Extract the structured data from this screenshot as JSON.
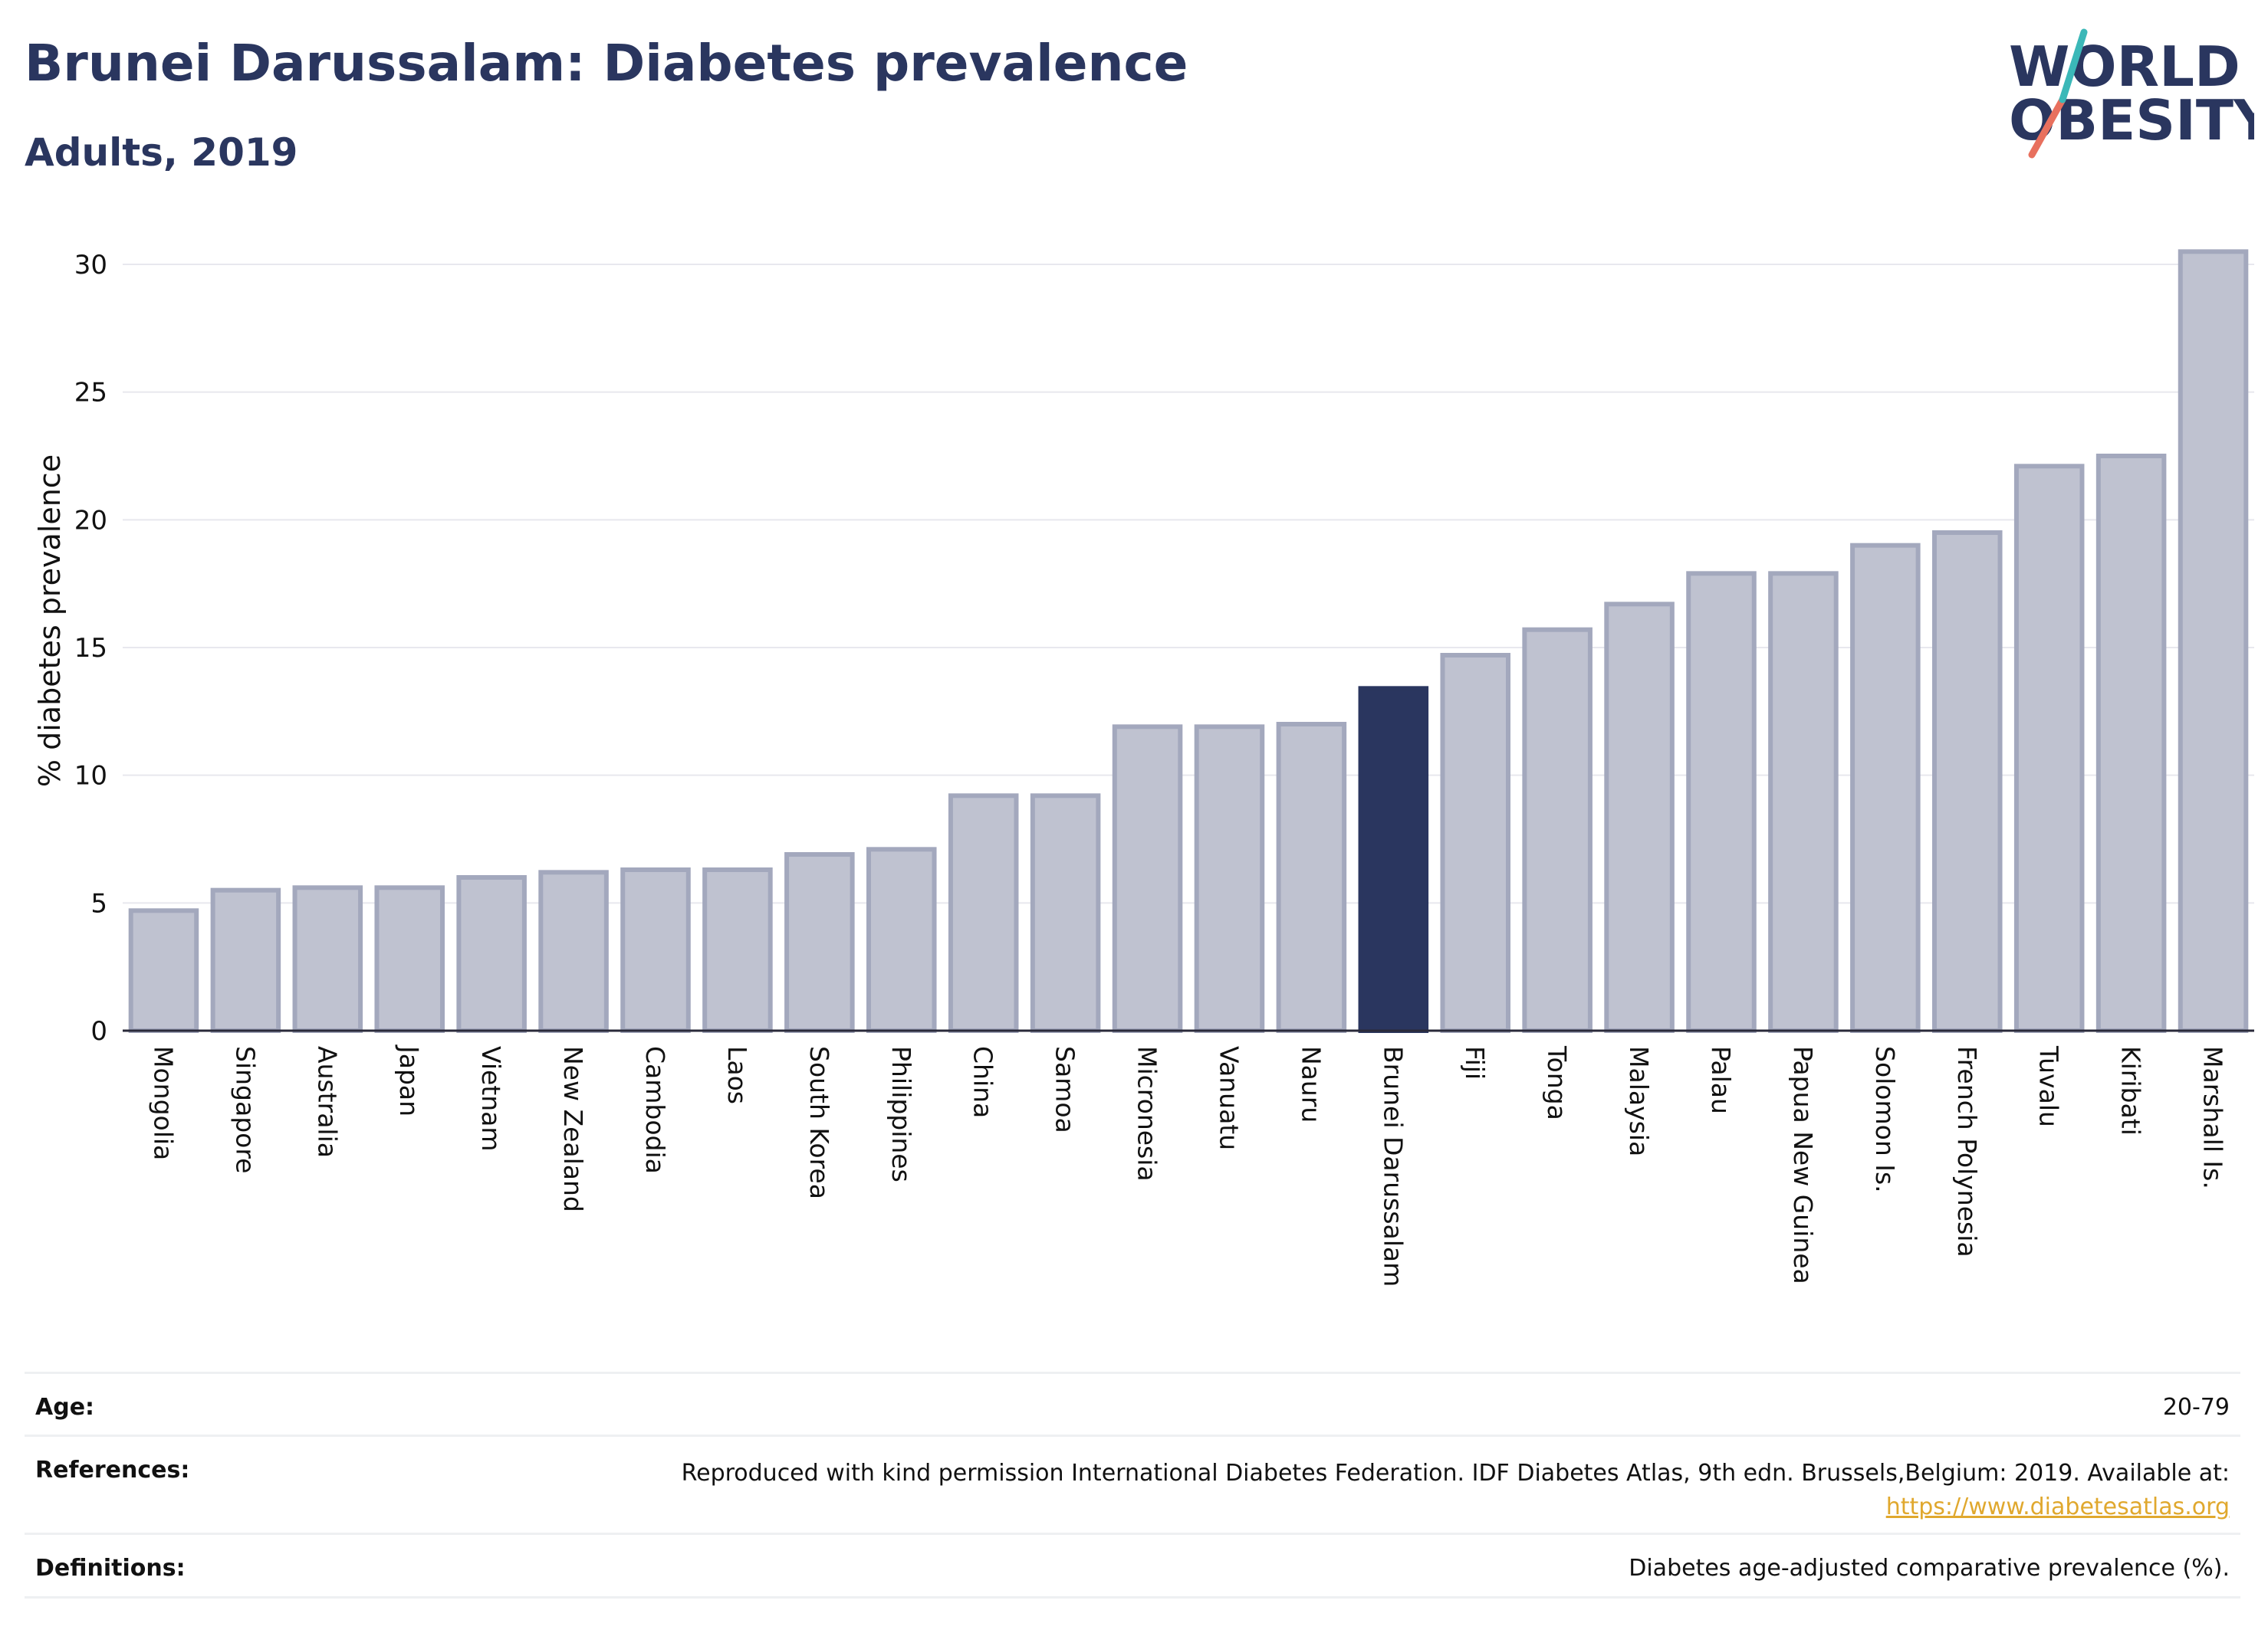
{
  "header": {
    "title": "Brunei Darussalam: Diabetes prevalence",
    "subtitle": "Adults, 2019"
  },
  "logo": {
    "line1": "WORLD",
    "line2": "OBESITY"
  },
  "colors": {
    "title": "#2a365f",
    "highlight_bar": "#2a365f",
    "bar_fill": "#bfc2d0",
    "bar_stroke": "#a3a8bd",
    "grid": "#e8e8ee",
    "logo_teal": "#3bb8b8",
    "logo_coral": "#e8705e",
    "link": "#e0a82e"
  },
  "chart_data": {
    "type": "bar",
    "ylabel": "% diabetes prevalence",
    "xlabel": "",
    "ylim": [
      0,
      30.6
    ],
    "yticks": [
      0,
      5,
      10,
      15,
      20,
      25,
      30
    ],
    "grid": true,
    "highlight": "Brunei Darussalam",
    "categories": [
      "Mongolia",
      "Singapore",
      "Australia",
      "Japan",
      "Vietnam",
      "New Zealand",
      "Cambodia",
      "Laos",
      "South Korea",
      "Philippines",
      "China",
      "Samoa",
      "Micronesia",
      "Vanuatu",
      "Nauru",
      "Brunei Darussalam",
      "Fiji",
      "Tonga",
      "Malaysia",
      "Palau",
      "Papua New Guinea",
      "Solomon Is.",
      "French Polynesia",
      "Tuvalu",
      "Kiribati",
      "Marshall Is."
    ],
    "values": [
      4.7,
      5.5,
      5.6,
      5.6,
      6.0,
      6.2,
      6.3,
      6.3,
      6.9,
      7.1,
      9.2,
      9.2,
      11.9,
      11.9,
      12.0,
      13.4,
      14.7,
      15.7,
      16.7,
      17.9,
      17.9,
      19.0,
      19.5,
      22.1,
      22.5,
      30.5
    ]
  },
  "info": {
    "age_label": "Age:",
    "age_value": "20-79",
    "references_label": "References:",
    "references_text": "Reproduced with kind permission International Diabetes Federation. IDF Diabetes Atlas, 9th edn. Brussels,Belgium: 2019. Available at:",
    "references_link": "https://www.diabetesatlas.org",
    "definitions_label": "Definitions:",
    "definitions_text": "Diabetes age-adjusted comparative prevalence (%)."
  }
}
